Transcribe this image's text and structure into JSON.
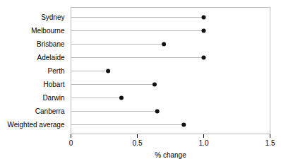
{
  "chart_data": {
    "type": "lollipop",
    "orientation": "horizontal",
    "categories": [
      "Sydney",
      "Melbourne",
      "Brisbane",
      "Adelaide",
      "Perth",
      "Hobart",
      "Darwin",
      "Canberra",
      "Weighted average"
    ],
    "values": [
      1.0,
      1.0,
      0.7,
      1.0,
      0.28,
      0.63,
      0.38,
      0.65,
      0.85
    ],
    "color": "#111111",
    "xlabel": "% change",
    "xlim": [
      0,
      1.5
    ],
    "xticks": [
      0,
      0.5,
      {
        "value": 1,
        "label": "1.0"
      },
      1.5
    ],
    "grid": false
  }
}
